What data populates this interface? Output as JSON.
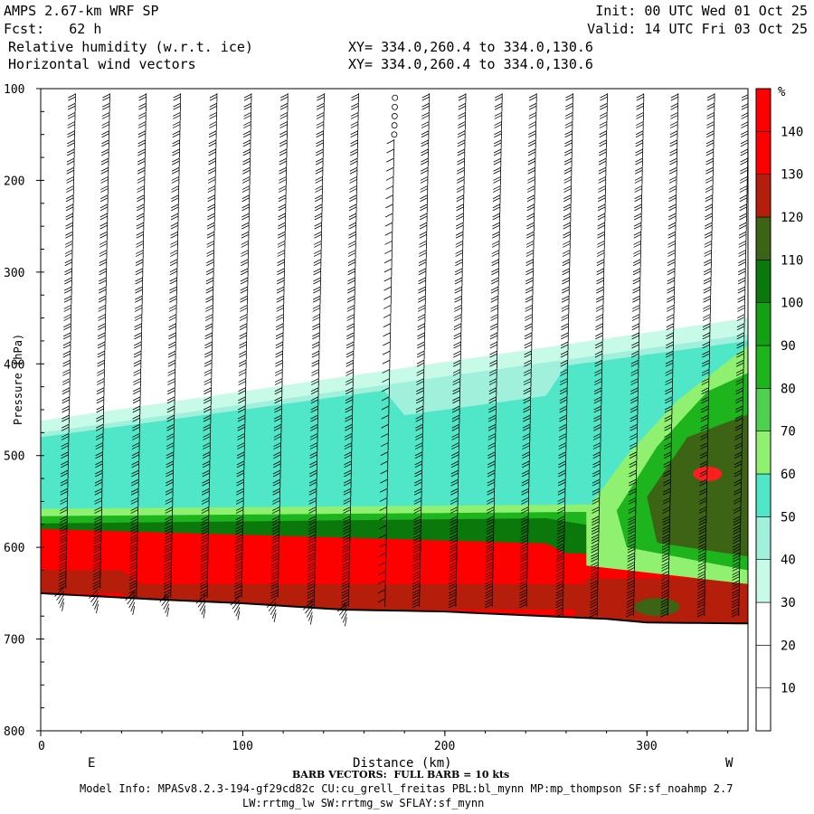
{
  "header": {
    "model": "AMPS 2.67-km WRF SP",
    "fcst": "Fcst:   62 h",
    "init": "Init: 00 UTC Wed 01 Oct 25",
    "valid": "Valid: 14 UTC Fri 03 Oct 25",
    "field1": "Relative humidity (w.r.t. ice)",
    "field2": "Horizontal wind vectors",
    "xy1": "XY= 334.0,260.4 to 334.0,130.6",
    "xy2": "XY= 334.0,260.4 to 334.0,130.6"
  },
  "footer": {
    "barb_note": "BARB VECTORS:  FULL BARB = 10 kts",
    "model_info": "Model Info: MPASv8.2.3-194-gf29cd82c CU:cu_grell_freitas PBL:bl_mynn MP:mp_thompson SF:sf_noahmp 2.7",
    "model_info2": "LW:rrtmg_lw SW:rrtmg_sw SFLAY:sf_mynn"
  },
  "colors": {
    "c30": "#c8fae8",
    "c40": "#a0f0dc",
    "c50": "#50e6c8",
    "c60": "#90f070",
    "c70": "#50d050",
    "c80": "#1eb41e",
    "c90": "#14a014",
    "c100": "#0a780a",
    "c110": "#3c6414",
    "c120": "#b41e0a",
    "c130": "#ff1e1e",
    "c140": "#ff0000"
  },
  "chart_data": {
    "type": "cross-section",
    "title": "Relative humidity (w.r.t. ice) and horizontal wind vectors",
    "xlabel": "Distance (km)",
    "ylabel": "Pressure (hPa)",
    "x_left_label": "E",
    "x_right_label": "W",
    "xlim": [
      0,
      350
    ],
    "ylim": [
      100,
      800
    ],
    "x_ticks": [
      0,
      100,
      200,
      300
    ],
    "y_ticks": [
      100,
      200,
      300,
      400,
      500,
      600,
      700,
      800
    ],
    "unit": "%",
    "colorbar_levels": [
      10,
      20,
      30,
      40,
      50,
      60,
      70,
      80,
      90,
      100,
      110,
      120,
      130,
      140
    ],
    "colorbar_colors": [
      "#ffffff",
      "#ffffff",
      "#ffffff",
      "#c8fae8",
      "#a0f0dc",
      "#50e6c8",
      "#90f070",
      "#50d050",
      "#1eb41e",
      "#14a014",
      "#0a780a",
      "#3c6414",
      "#b41e0a",
      "#ff0000",
      "#ff0000"
    ],
    "terrain_pressure": [
      [
        0,
        650
      ],
      [
        50,
        656
      ],
      [
        100,
        661
      ],
      [
        150,
        668
      ],
      [
        200,
        670
      ],
      [
        250,
        675
      ],
      [
        280,
        678
      ],
      [
        300,
        682
      ],
      [
        350,
        683
      ]
    ],
    "barb_columns_km": [
      15,
      32,
      50,
      67,
      85,
      102,
      120,
      138,
      155,
      173,
      190,
      208,
      226,
      243,
      261,
      278,
      296,
      313,
      331,
      348
    ]
  }
}
